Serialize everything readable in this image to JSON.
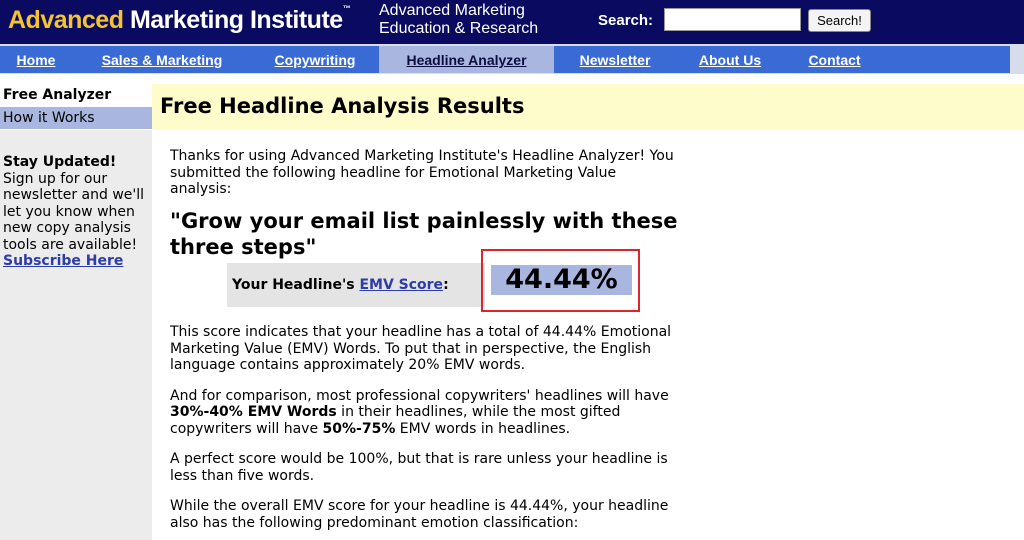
{
  "header": {
    "logo_part1": "Advanced",
    "logo_part2": "Marketing Institute",
    "logo_tm": "™",
    "tagline_line1": "Advanced Marketing",
    "tagline_line2": "Education & Research",
    "search_label": "Search:",
    "search_value": "",
    "search_button": "Search!"
  },
  "nav": {
    "items": [
      {
        "label": "Home"
      },
      {
        "label": "Sales & Marketing"
      },
      {
        "label": "Copywriting"
      },
      {
        "label": "Headline Analyzer"
      },
      {
        "label": "Newsletter"
      },
      {
        "label": "About Us"
      },
      {
        "label": "Contact"
      }
    ],
    "active": "Headline Analyzer"
  },
  "sidebar": {
    "heading": "Free Analyzer",
    "item": "How it Works",
    "stay_title": "Stay Updated!",
    "stay_text": "Sign up for our newsletter and we'll let you know when new copy analysis tools are available!",
    "subscribe_link": "Subscribe Here"
  },
  "main": {
    "title": "Free Headline Analysis Results",
    "intro": "Thanks for using Advanced Marketing Institute's Headline Analyzer! You submitted the following headline for Emotional Marketing Value analysis:",
    "headline": "\"Grow your email list painlessly with these three steps\"",
    "score_label_prefix": "Your Headline's ",
    "score_label_link": "EMV Score",
    "score_label_suffix": ":",
    "score_value": "44.44%",
    "para1": "This score indicates that your headline has a total of 44.44% Emotional Marketing Value (EMV) Words. To put that in perspective, the English language contains approximately 20% EMV words.",
    "para2_a": "And for comparison, most professional copywriters' headlines will have ",
    "para2_b": "30%-40% EMV Words",
    "para2_c": " in their headlines, while the most gifted copywriters will have ",
    "para2_d": "50%-75%",
    "para2_e": " EMV words in headlines.",
    "para3": "A perfect score would be 100%, but that is rare unless your headline is less than five words.",
    "para4": "While the overall EMV score for your headline is 44.44%, your headline also has the following predominant emotion classification:"
  },
  "colors": {
    "header_bg": "#0a0a60",
    "logo_accent": "#f4c430",
    "nav_bg": "#3a6ad3",
    "nav_active_bg": "#a9b7e0",
    "title_bar_bg": "#fffccc",
    "score_highlight_border": "#d9262c"
  }
}
